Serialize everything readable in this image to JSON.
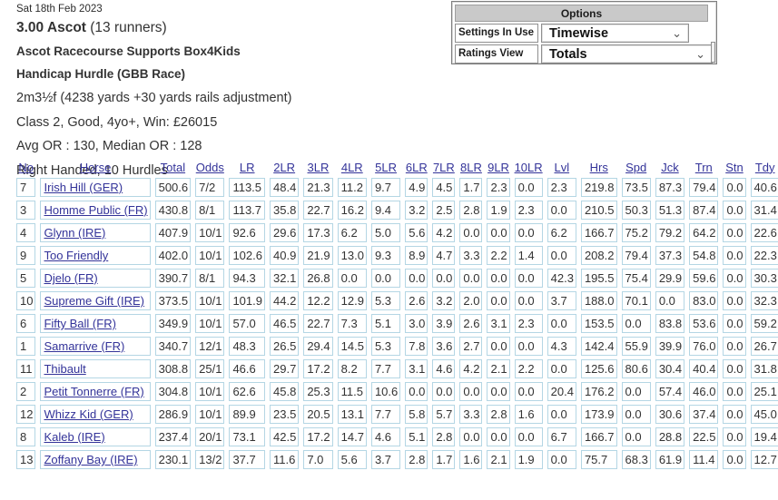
{
  "race_header": {
    "date": "Sat 18th Feb 2023",
    "title_bold": "3.00 Ascot",
    "title_rest": " (13 runners)",
    "sponsor": "Ascot Racecourse Supports Box4Kids",
    "race_type": "Handicap Hurdle (GBB Race)",
    "distance": "2m3½f (4238 yards +30 yards rails adjustment)",
    "conditions": "Class 2, Good, 4yo+, Win: £26015",
    "official_ratings": "Avg OR : 130, Median OR : 128",
    "course_info": "Right Handed, 10 Hurdles"
  },
  "options_panel": {
    "title": "Options",
    "rows": [
      {
        "label": "Settings In Use",
        "value": "Timewise"
      },
      {
        "label": "Ratings View",
        "value": "Totals"
      }
    ]
  },
  "icons": {
    "chevron_down": "⌄"
  },
  "table": {
    "columns": [
      "No",
      "Horse",
      "Total",
      "Odds",
      "LR",
      "2LR",
      "3LR",
      "4LR",
      "5LR",
      "6LR",
      "7LR",
      "8LR",
      "9LR",
      "10LR",
      "Lvl",
      "Hrs",
      "Spd",
      "Jck",
      "Trn",
      "Stn",
      "Tdy"
    ],
    "rows": [
      {
        "no": "7",
        "horse": "Irish Hill (GER)",
        "values": [
          "500.6",
          "7/2",
          "113.5",
          "48.4",
          "21.3",
          "11.2",
          "9.7",
          "4.9",
          "4.5",
          "1.7",
          "2.3",
          "0.0",
          "2.3",
          "219.8",
          "73.5",
          "87.3",
          "79.4",
          "0.0",
          "40.6"
        ]
      },
      {
        "no": "3",
        "horse": "Homme Public (FR)",
        "values": [
          "430.8",
          "8/1",
          "113.7",
          "35.8",
          "22.7",
          "16.2",
          "9.4",
          "3.2",
          "2.5",
          "2.8",
          "1.9",
          "2.3",
          "0.0",
          "210.5",
          "50.3",
          "51.3",
          "87.4",
          "0.0",
          "31.4"
        ]
      },
      {
        "no": "4",
        "horse": "Glynn (IRE)",
        "values": [
          "407.9",
          "10/1",
          "92.6",
          "29.6",
          "17.3",
          "6.2",
          "5.0",
          "5.6",
          "4.2",
          "0.0",
          "0.0",
          "0.0",
          "6.2",
          "166.7",
          "75.2",
          "79.2",
          "64.2",
          "0.0",
          "22.6"
        ]
      },
      {
        "no": "9",
        "horse": "Too Friendly",
        "values": [
          "402.0",
          "10/1",
          "102.6",
          "40.9",
          "21.9",
          "13.0",
          "9.3",
          "8.9",
          "4.7",
          "3.3",
          "2.2",
          "1.4",
          "0.0",
          "208.2",
          "79.4",
          "37.3",
          "54.8",
          "0.0",
          "22.3"
        ]
      },
      {
        "no": "5",
        "horse": "Djelo (FR)",
        "values": [
          "390.7",
          "8/1",
          "94.3",
          "32.1",
          "26.8",
          "0.0",
          "0.0",
          "0.0",
          "0.0",
          "0.0",
          "0.0",
          "0.0",
          "42.3",
          "195.5",
          "75.4",
          "29.9",
          "59.6",
          "0.0",
          "30.3"
        ]
      },
      {
        "no": "10",
        "horse": "Supreme Gift (IRE)",
        "values": [
          "373.5",
          "10/1",
          "101.9",
          "44.2",
          "12.2",
          "12.9",
          "5.3",
          "2.6",
          "3.2",
          "2.0",
          "0.0",
          "0.0",
          "3.7",
          "188.0",
          "70.1",
          "0.0",
          "83.0",
          "0.0",
          "32.3"
        ]
      },
      {
        "no": "6",
        "horse": "Fifty Ball (FR)",
        "values": [
          "349.9",
          "10/1",
          "57.0",
          "46.5",
          "22.7",
          "7.3",
          "5.1",
          "3.0",
          "3.9",
          "2.6",
          "3.1",
          "2.3",
          "0.0",
          "153.5",
          "0.0",
          "83.8",
          "53.6",
          "0.0",
          "59.2"
        ]
      },
      {
        "no": "1",
        "horse": "Samarrive (FR)",
        "values": [
          "340.7",
          "12/1",
          "48.3",
          "26.5",
          "29.4",
          "14.5",
          "5.3",
          "7.8",
          "3.6",
          "2.7",
          "0.0",
          "0.0",
          "4.3",
          "142.4",
          "55.9",
          "39.9",
          "76.0",
          "0.0",
          "26.7"
        ]
      },
      {
        "no": "11",
        "horse": "Thibault",
        "values": [
          "308.8",
          "25/1",
          "46.6",
          "29.7",
          "17.2",
          "8.2",
          "7.7",
          "3.1",
          "4.6",
          "4.2",
          "2.1",
          "2.2",
          "0.0",
          "125.6",
          "80.6",
          "30.4",
          "40.4",
          "0.0",
          "31.8"
        ]
      },
      {
        "no": "2",
        "horse": "Petit Tonnerre (FR)",
        "values": [
          "304.8",
          "10/1",
          "62.6",
          "45.8",
          "25.3",
          "11.5",
          "10.6",
          "0.0",
          "0.0",
          "0.0",
          "0.0",
          "0.0",
          "20.4",
          "176.2",
          "0.0",
          "57.4",
          "46.0",
          "0.0",
          "25.1"
        ]
      },
      {
        "no": "12",
        "horse": "Whizz Kid (GER)",
        "values": [
          "286.9",
          "10/1",
          "89.9",
          "23.5",
          "20.5",
          "13.1",
          "7.7",
          "5.8",
          "5.7",
          "3.3",
          "2.8",
          "1.6",
          "0.0",
          "173.9",
          "0.0",
          "30.6",
          "37.4",
          "0.0",
          "45.0"
        ]
      },
      {
        "no": "8",
        "horse": "Kaleb (IRE)",
        "values": [
          "237.4",
          "20/1",
          "73.1",
          "42.5",
          "17.2",
          "14.7",
          "4.6",
          "5.1",
          "2.8",
          "0.0",
          "0.0",
          "0.0",
          "6.7",
          "166.7",
          "0.0",
          "28.8",
          "22.5",
          "0.0",
          "19.4"
        ]
      },
      {
        "no": "13",
        "horse": "Zoffany Bay (IRE)",
        "values": [
          "230.1",
          "13/2",
          "37.7",
          "11.6",
          "7.0",
          "5.6",
          "3.7",
          "2.8",
          "1.7",
          "1.6",
          "2.1",
          "1.9",
          "0.0",
          "75.7",
          "68.3",
          "61.9",
          "11.4",
          "0.0",
          "12.7"
        ]
      }
    ]
  }
}
